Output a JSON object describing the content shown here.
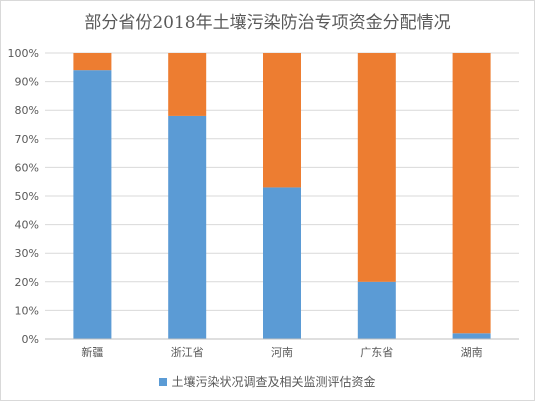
{
  "chart_data": {
    "type": "bar",
    "stacked": true,
    "title": "部分省份2018年土壤污染防治专项资金分配情况",
    "categories": [
      "新疆",
      "浙江省",
      "河南",
      "广东省",
      "湖南"
    ],
    "series": [
      {
        "name": "土壤污染状况调查及相关监测评估资金",
        "color": "#5b9bd5",
        "values": [
          94,
          78,
          53,
          20,
          2
        ]
      },
      {
        "color": "#ed7d31",
        "values": [
          6,
          22,
          47,
          80,
          98
        ]
      }
    ],
    "yticks": [
      "0%",
      "10%",
      "20%",
      "30%",
      "40%",
      "50%",
      "60%",
      "70%",
      "80%",
      "90%",
      "100%"
    ],
    "ylim": [
      0,
      100
    ],
    "grid": true,
    "legend": "bottom"
  }
}
